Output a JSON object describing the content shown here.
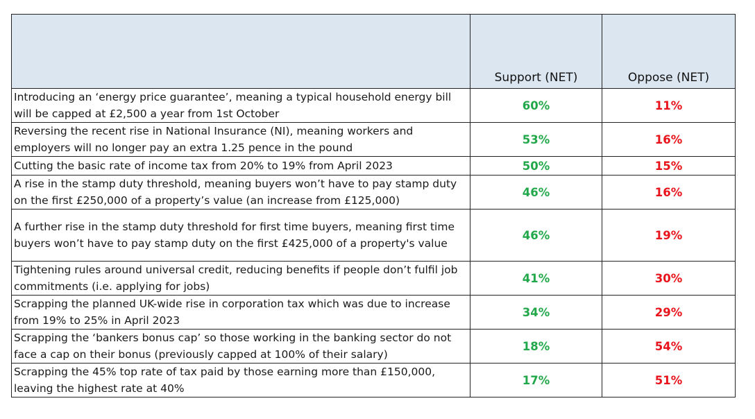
{
  "table": {
    "columns": [
      "",
      "Support (NET)",
      "Oppose (NET)"
    ],
    "colors": {
      "header_bg": "#dce6f1",
      "support": "#22a84a",
      "oppose": "#e8131b"
    }
  },
  "chart_data": {
    "type": "table",
    "columns": [
      "",
      "Support (NET)",
      "Oppose (NET)"
    ],
    "rows": [
      {
        "policy": "Introducing an ‘energy price guarantee’, meaning a typical household energy bill will be capped at £2,500 a year from 1st October",
        "support": "60%",
        "oppose": "11%"
      },
      {
        "policy": "Reversing the recent rise in National Insurance (NI), meaning workers and employers will no longer pay an extra 1.25 pence in the pound",
        "support": "53%",
        "oppose": "16%"
      },
      {
        "policy": "Cutting the basic rate of income tax from 20% to 19% from April 2023",
        "support": "50%",
        "oppose": "15%"
      },
      {
        "policy": "A rise in the stamp duty threshold, meaning buyers won’t have to pay stamp duty on the first £250,000 of a property’s value (an increase from £125,000)",
        "support": "46%",
        "oppose": "16%"
      },
      {
        "policy": "A further rise in the stamp duty threshold for first time buyers, meaning first time buyers won’t have to pay stamp duty on the first £425,000 of a property's value",
        "support": "46%",
        "oppose": "19%"
      },
      {
        "policy": "Tightening rules around universal credit, reducing benefits if people don’t fulfil job commitments (i.e. applying for jobs)",
        "support": "41%",
        "oppose": "30%"
      },
      {
        "policy": "Scrapping the planned UK-wide rise in corporation tax which was due to increase from 19% to 25% in April 2023",
        "support": "34%",
        "oppose": "29%"
      },
      {
        "policy": "Scrapping the ‘bankers bonus cap’ so those working in the banking sector do not face a cap on their bonus (previously capped at 100% of their salary)",
        "support": "18%",
        "oppose": "54%"
      },
      {
        "policy": "Scrapping the 45% top rate of tax paid by those earning more than £150,000, leaving the highest rate at 40%",
        "support": "17%",
        "oppose": "51%"
      }
    ]
  }
}
